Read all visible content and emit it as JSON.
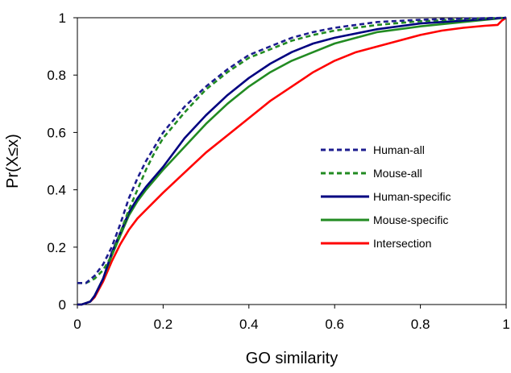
{
  "chart_data": {
    "type": "line",
    "title": "",
    "xlabel": "GO similarity",
    "ylabel": "Pr(X≤x)",
    "xlim": [
      0,
      1
    ],
    "ylim": [
      0,
      1
    ],
    "xticks": [
      "0",
      "0.2",
      "0.4",
      "0.6",
      "0.8",
      "1"
    ],
    "yticks": [
      "0",
      "0.2",
      "0.4",
      "0.6",
      "0.8",
      "1"
    ],
    "grid": false,
    "legend": "center-right",
    "series": [
      {
        "name": "Human-all",
        "color": "#1c1c8f",
        "style": "dotted",
        "x": [
          0,
          0.02,
          0.04,
          0.06,
          0.08,
          0.1,
          0.12,
          0.14,
          0.16,
          0.18,
          0.2,
          0.25,
          0.3,
          0.35,
          0.4,
          0.45,
          0.5,
          0.55,
          0.6,
          0.7,
          0.8,
          0.9,
          1.0
        ],
        "y": [
          0.075,
          0.075,
          0.1,
          0.14,
          0.2,
          0.28,
          0.37,
          0.44,
          0.5,
          0.55,
          0.6,
          0.69,
          0.76,
          0.82,
          0.87,
          0.9,
          0.93,
          0.95,
          0.965,
          0.985,
          0.993,
          0.997,
          1.0
        ]
      },
      {
        "name": "Mouse-all",
        "color": "#228b22",
        "style": "dotted",
        "x": [
          0,
          0.02,
          0.04,
          0.06,
          0.08,
          0.1,
          0.12,
          0.14,
          0.16,
          0.18,
          0.2,
          0.25,
          0.3,
          0.35,
          0.4,
          0.45,
          0.5,
          0.55,
          0.6,
          0.7,
          0.8,
          0.9,
          1.0
        ],
        "y": [
          0.075,
          0.075,
          0.09,
          0.12,
          0.17,
          0.25,
          0.33,
          0.4,
          0.47,
          0.53,
          0.58,
          0.67,
          0.75,
          0.81,
          0.86,
          0.89,
          0.92,
          0.94,
          0.955,
          0.975,
          0.988,
          0.995,
          1.0
        ]
      },
      {
        "name": "Human-specific",
        "color": "#000080",
        "style": "solid",
        "x": [
          0,
          0.01,
          0.02,
          0.03,
          0.04,
          0.06,
          0.08,
          0.1,
          0.12,
          0.14,
          0.16,
          0.2,
          0.25,
          0.3,
          0.35,
          0.4,
          0.45,
          0.5,
          0.55,
          0.6,
          0.7,
          0.8,
          0.9,
          1.0
        ],
        "y": [
          0,
          0,
          0.005,
          0.01,
          0.03,
          0.09,
          0.18,
          0.25,
          0.32,
          0.37,
          0.41,
          0.48,
          0.58,
          0.66,
          0.73,
          0.79,
          0.84,
          0.88,
          0.91,
          0.93,
          0.96,
          0.98,
          0.99,
          1.0
        ]
      },
      {
        "name": "Mouse-specific",
        "color": "#228b22",
        "style": "solid",
        "x": [
          0,
          0.01,
          0.02,
          0.03,
          0.04,
          0.06,
          0.08,
          0.1,
          0.12,
          0.14,
          0.16,
          0.2,
          0.25,
          0.3,
          0.35,
          0.4,
          0.45,
          0.5,
          0.55,
          0.6,
          0.7,
          0.8,
          0.9,
          1.0
        ],
        "y": [
          0,
          0,
          0.005,
          0.01,
          0.03,
          0.09,
          0.17,
          0.24,
          0.31,
          0.36,
          0.4,
          0.47,
          0.55,
          0.63,
          0.7,
          0.76,
          0.81,
          0.85,
          0.88,
          0.91,
          0.95,
          0.97,
          0.985,
          1.0
        ]
      },
      {
        "name": "Intersection",
        "color": "#ff0000",
        "style": "solid",
        "x": [
          0,
          0.01,
          0.02,
          0.03,
          0.04,
          0.06,
          0.08,
          0.1,
          0.12,
          0.14,
          0.16,
          0.2,
          0.25,
          0.3,
          0.35,
          0.4,
          0.45,
          0.5,
          0.55,
          0.6,
          0.65,
          0.7,
          0.75,
          0.8,
          0.85,
          0.9,
          0.95,
          0.98,
          0.99,
          1.0
        ],
        "y": [
          0,
          0,
          0.005,
          0.01,
          0.025,
          0.08,
          0.15,
          0.21,
          0.26,
          0.3,
          0.33,
          0.39,
          0.46,
          0.53,
          0.59,
          0.65,
          0.71,
          0.76,
          0.81,
          0.85,
          0.88,
          0.9,
          0.92,
          0.94,
          0.955,
          0.965,
          0.972,
          0.975,
          0.99,
          1.0
        ]
      }
    ]
  }
}
